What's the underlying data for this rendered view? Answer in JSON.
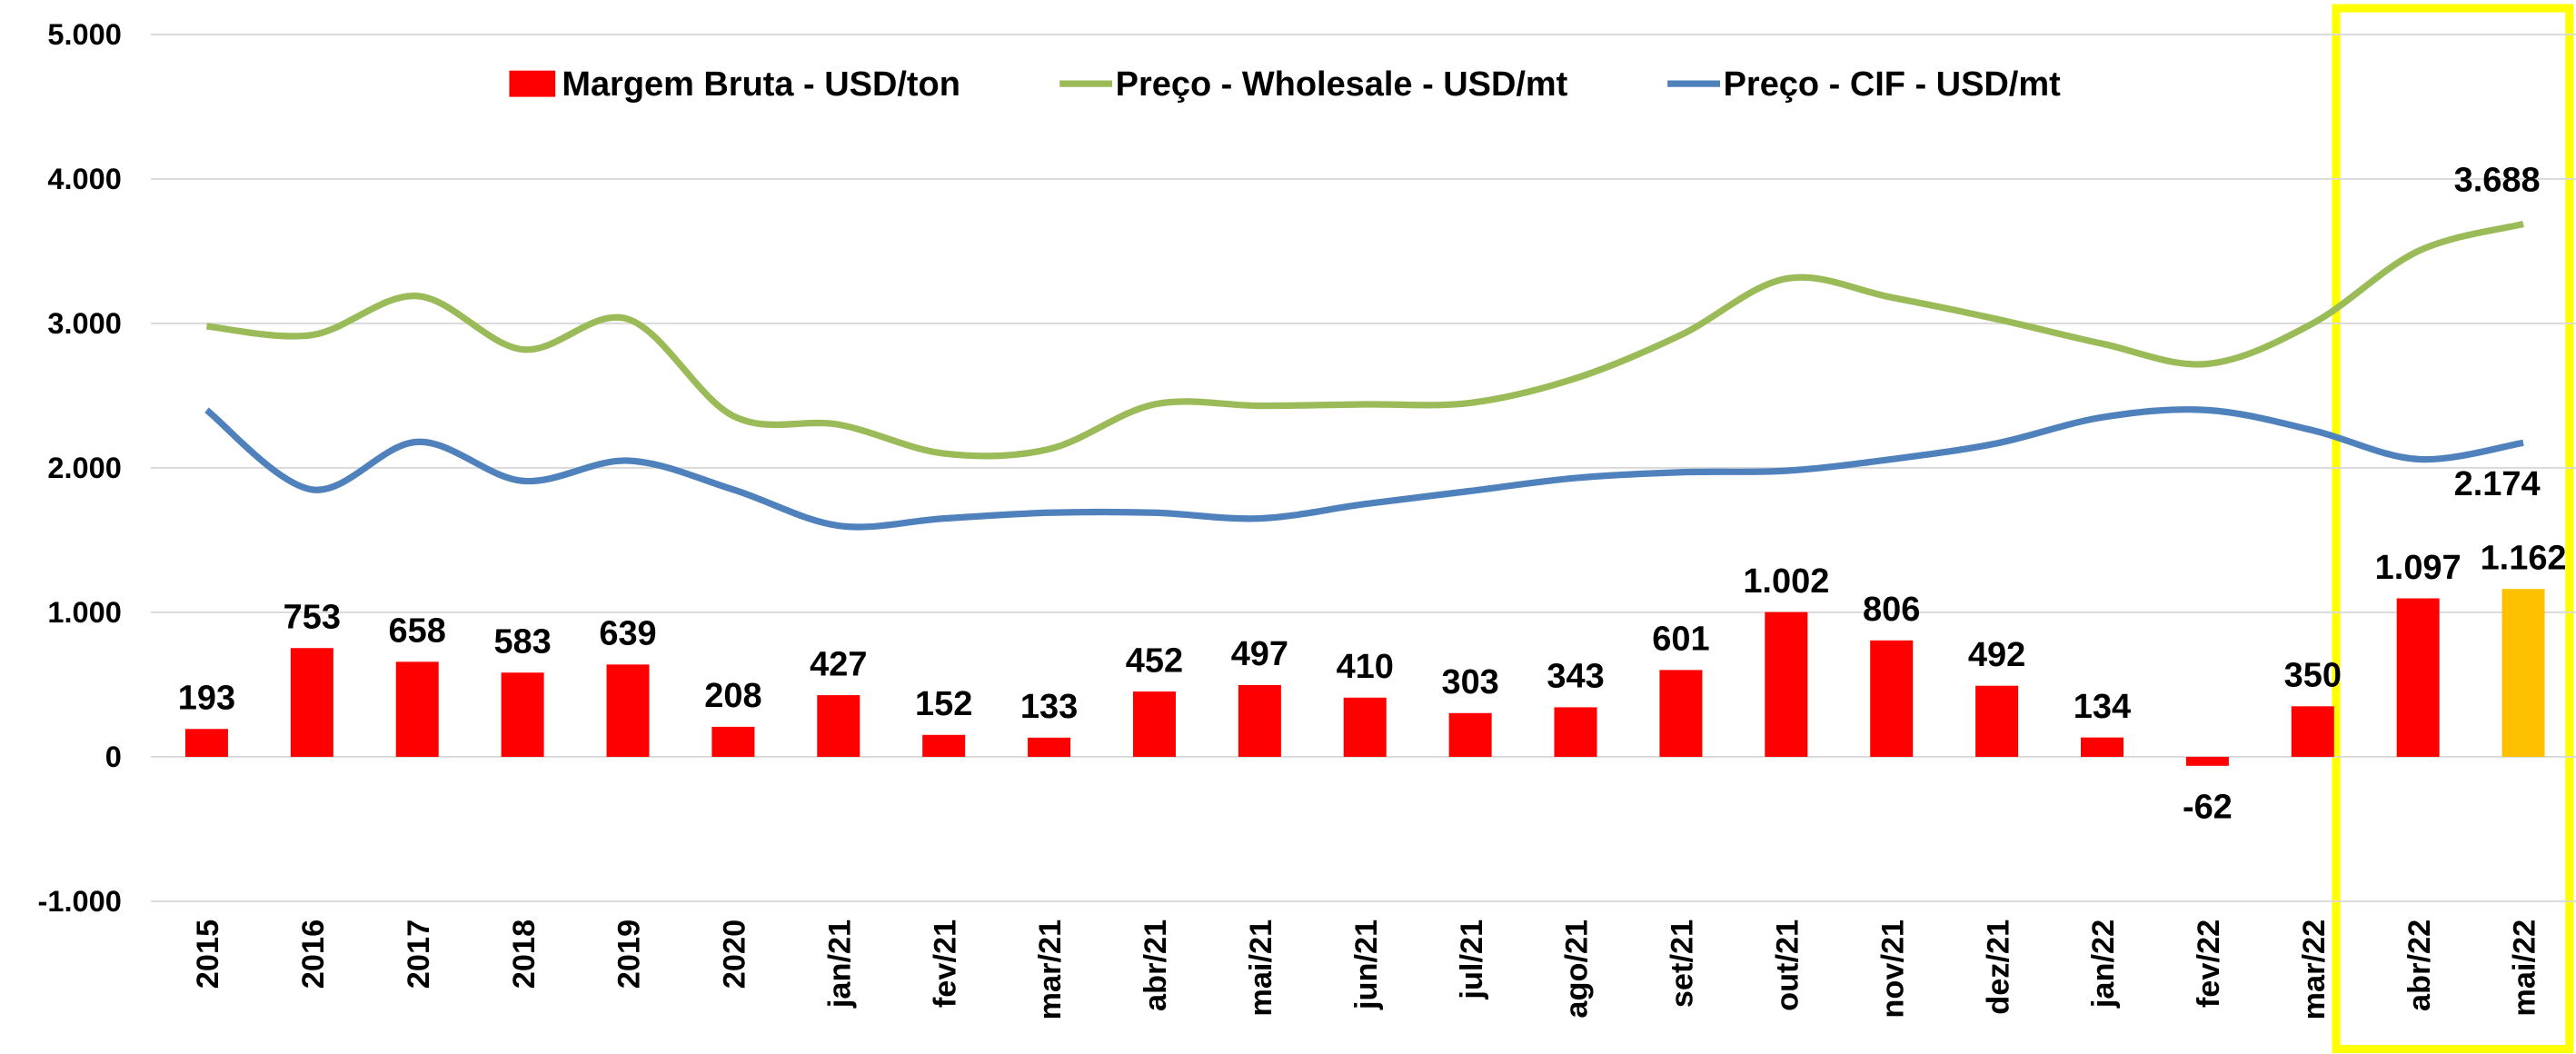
{
  "chart_data": {
    "type": "bar-line",
    "categories": [
      "2015",
      "2016",
      "2017",
      "2018",
      "2019",
      "2020",
      "jan/21",
      "fev/21",
      "mar/21",
      "abr/21",
      "mai/21",
      "jun/21",
      "jul/21",
      "ago/21",
      "set/21",
      "out/21",
      "nov/21",
      "dez/21",
      "jan/22",
      "fev/22",
      "mar/22",
      "abr/22",
      "mai/22"
    ],
    "series": [
      {
        "name": "Margem Bruta - USD/ton",
        "type": "bar",
        "color": "#ff0000",
        "colors": [
          "#ff0000",
          "#ff0000",
          "#ff0000",
          "#ff0000",
          "#ff0000",
          "#ff0000",
          "#ff0000",
          "#ff0000",
          "#ff0000",
          "#ff0000",
          "#ff0000",
          "#ff0000",
          "#ff0000",
          "#ff0000",
          "#ff0000",
          "#ff0000",
          "#ff0000",
          "#ff0000",
          "#ff0000",
          "#ff0000",
          "#ff0000",
          "#ff0000",
          "#ffc000"
        ],
        "values": [
          193,
          753,
          658,
          583,
          639,
          208,
          427,
          152,
          133,
          452,
          497,
          410,
          303,
          343,
          601,
          1002,
          806,
          492,
          134,
          -62,
          350,
          1097,
          1162
        ],
        "value_labels": [
          "193",
          "753",
          "658",
          "583",
          "639",
          "208",
          "427",
          "152",
          "133",
          "452",
          "497",
          "410",
          "303",
          "343",
          "601",
          "1.002",
          "806",
          "492",
          "134",
          "-62",
          "350",
          "1.097",
          "1.162"
        ]
      },
      {
        "name": "Preço - Wholesale - USD/mt",
        "type": "line",
        "color": "#9bbb59",
        "values": [
          2980,
          2920,
          3190,
          2820,
          3030,
          2360,
          2300,
          2100,
          2130,
          2440,
          2430,
          2440,
          2450,
          2620,
          2920,
          3310,
          3180,
          3030,
          2860,
          2720,
          3000,
          3500,
          3688
        ],
        "value_labels": [
          null,
          null,
          null,
          null,
          null,
          null,
          null,
          null,
          null,
          null,
          null,
          null,
          null,
          null,
          null,
          null,
          null,
          null,
          null,
          null,
          null,
          null,
          "3.688"
        ]
      },
      {
        "name": "Preço - CIF - USD/mt",
        "type": "line",
        "color": "#4f81bd",
        "values": [
          2400,
          1850,
          2180,
          1910,
          2050,
          1850,
          1600,
          1650,
          1690,
          1690,
          1650,
          1750,
          1840,
          1930,
          1970,
          1980,
          2060,
          2170,
          2350,
          2400,
          2260,
          2060,
          2174
        ],
        "value_labels": [
          null,
          null,
          null,
          null,
          null,
          null,
          null,
          null,
          null,
          null,
          null,
          null,
          null,
          null,
          null,
          null,
          null,
          null,
          null,
          null,
          null,
          null,
          "2.174"
        ]
      }
    ],
    "ylim": [
      -1000,
      5000
    ],
    "yticks": [
      {
        "value": -1000,
        "label": "-1.000"
      },
      0,
      {
        "value": 1000,
        "label": "1.000"
      },
      {
        "value": 2000,
        "label": "2.000"
      },
      {
        "value": 3000,
        "label": "3.000"
      },
      {
        "value": 4000,
        "label": "4.000"
      },
      {
        "value": 5000,
        "label": "5.000"
      }
    ],
    "grid": true,
    "legend": "top"
  }
}
